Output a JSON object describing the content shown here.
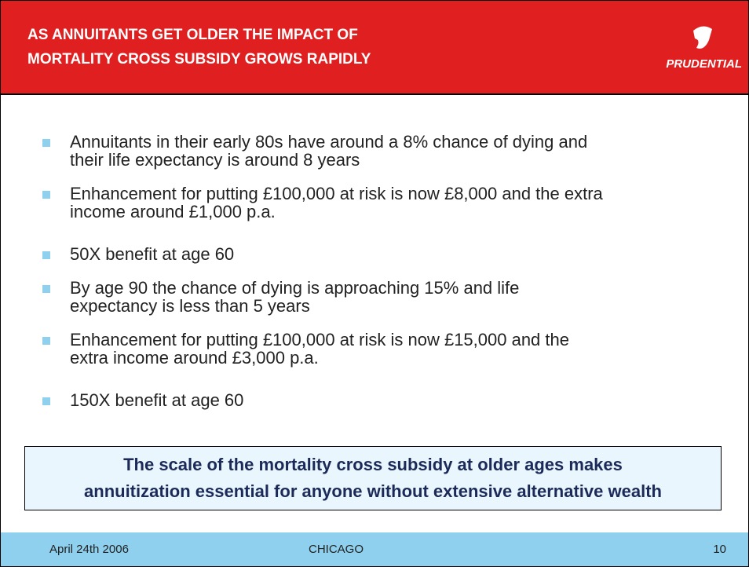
{
  "header": {
    "title_lines": [
      "AS  ANNUITANTS GET OLDER THE IMPACT OF",
      "MORTALITY CROSS SUBSIDY GROWS RAPIDLY"
    ],
    "logo": "PRUDENTIAL"
  },
  "bullets": [
    [
      "Annuitants in their early 80s have around a 8% chance of dying and",
      "their life expectancy is around 8 years"
    ],
    [
      "Enhancement for putting £100,000 at risk is now £8,000 and the extra",
      "income around £1,000 p.a."
    ],
    [
      "50X benefit at age 60"
    ],
    [
      "By age 90 the chance of dying is approaching 15% and life",
      "expectancy is less than 5 years"
    ],
    [
      "Enhancement for putting £100,000 at risk is now £15,000 and the",
      "extra income around £3,000 p.a."
    ],
    [
      "150X benefit at age 60"
    ]
  ],
  "callout": [
    "The scale of the mortality cross subsidy at older ages makes",
    "annuitization essential for anyone without extensive alternative wealth"
  ],
  "footer": {
    "date": "April 24th 2006",
    "place": "CHICAGO",
    "page": "10"
  }
}
